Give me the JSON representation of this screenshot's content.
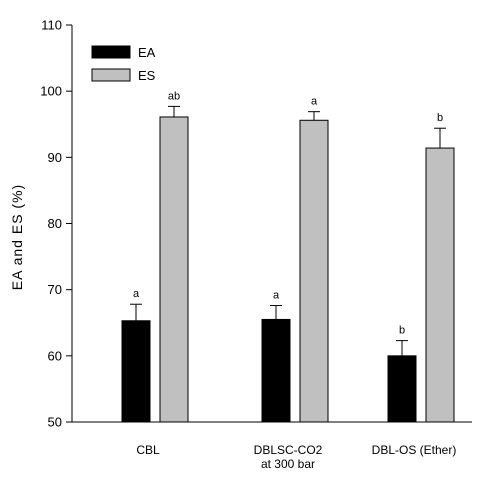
{
  "chart_data": {
    "type": "bar",
    "ylabel": "EA and ES (%)",
    "ylim": [
      50,
      110
    ],
    "yticks": [
      50,
      60,
      70,
      80,
      90,
      100,
      110
    ],
    "grid": false,
    "legend_position": "top-left",
    "categories": [
      [
        "CBL"
      ],
      [
        "DBLSC-CO2",
        "at 300 bar"
      ],
      [
        "DBL-OS (Ether)"
      ]
    ],
    "series": [
      {
        "name": "EA",
        "color": "#000000",
        "values": [
          65.3,
          65.5,
          60.0
        ],
        "errors": [
          2.5,
          2.1,
          2.3
        ],
        "significance": [
          "a",
          "a",
          "b"
        ]
      },
      {
        "name": "ES",
        "color": "#c0c0c0",
        "values": [
          96.1,
          95.6,
          91.4
        ],
        "errors": [
          1.6,
          1.3,
          3.0
        ],
        "significance": [
          "ab",
          "a",
          "b"
        ]
      }
    ]
  }
}
